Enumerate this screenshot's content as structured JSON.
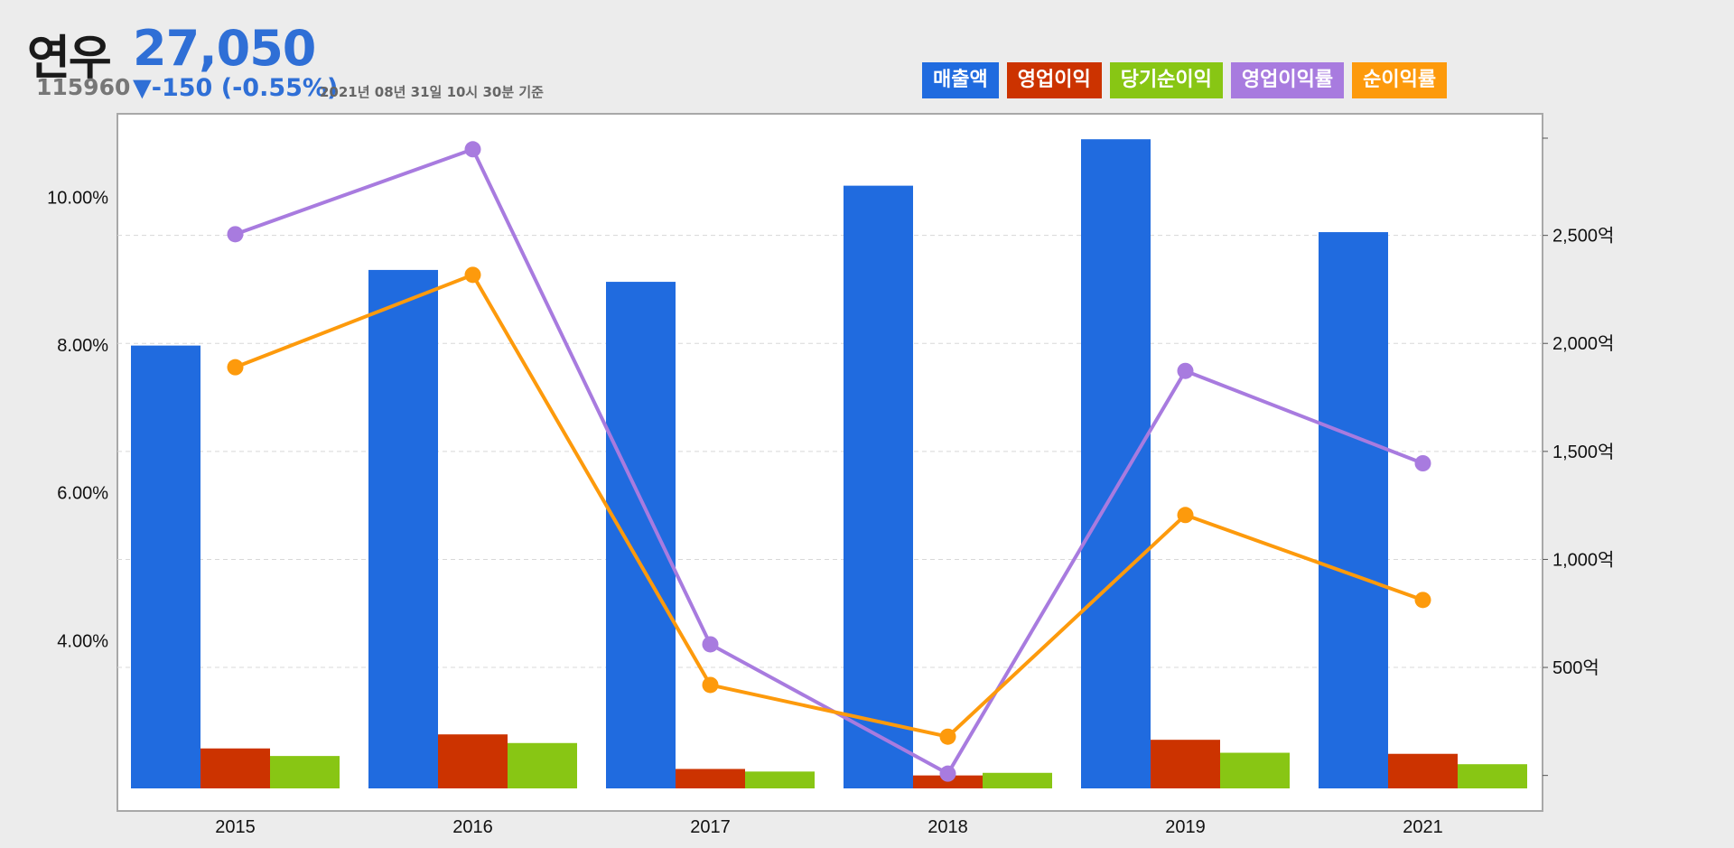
{
  "header": {
    "company_name": "연우",
    "price": "27,050",
    "stock_code": "115960",
    "change": "▼-150 (-0.55%)",
    "as_of": "2021년 08년 31일 10시 30분 기준"
  },
  "colors": {
    "revenue": "#206bdf",
    "operating_income": "#cc3300",
    "net_income": "#88c614",
    "operating_margin": "#a87bdf",
    "net_margin": "#fd9a0c"
  },
  "chart_data": {
    "type": "bar",
    "categories": [
      "2015",
      "2016",
      "2017",
      "2018",
      "2019",
      "2021"
    ],
    "left_axis": {
      "ticks": [
        "4.00%",
        "6.00%",
        "8.00%",
        "10.00%"
      ],
      "range": [
        2.0,
        10.8
      ]
    },
    "right_axis": {
      "ticks": [
        "500억",
        "1,000억",
        "1,500억",
        "2,000억",
        "2,500억"
      ],
      "range": [
        -60,
        2950
      ]
    },
    "grid": "horizontal dashed",
    "legend_position": "top-right",
    "series": [
      {
        "name": "매출액",
        "type": "bar",
        "axis": "right",
        "values": [
          1990,
          2340,
          2285,
          2730,
          2945,
          2515
        ]
      },
      {
        "name": "영업이익",
        "type": "bar",
        "axis": "right",
        "values": [
          125,
          190,
          30,
          0,
          165,
          100
        ]
      },
      {
        "name": "당기순이익",
        "type": "bar",
        "axis": "right",
        "values": [
          90,
          150,
          18,
          12,
          105,
          52
        ]
      },
      {
        "name": "영업이익률",
        "type": "line",
        "axis": "left",
        "values": [
          9.5,
          10.65,
          3.95,
          2.2,
          7.65,
          6.4
        ]
      },
      {
        "name": "순이익률",
        "type": "line",
        "axis": "left",
        "values": [
          7.7,
          8.95,
          3.4,
          2.7,
          5.7,
          4.55
        ]
      }
    ]
  }
}
